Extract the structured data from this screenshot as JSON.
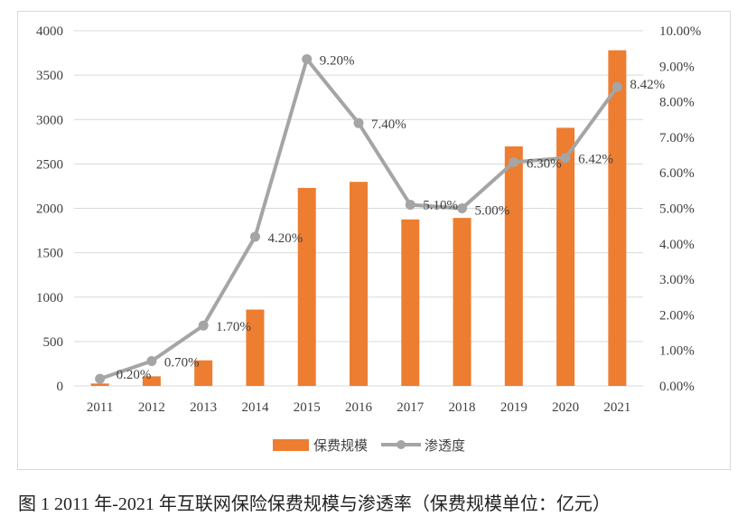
{
  "chart_data": {
    "type": "bar+line",
    "categories": [
      "2011",
      "2012",
      "2013",
      "2014",
      "2015",
      "2016",
      "2017",
      "2018",
      "2019",
      "2020",
      "2021"
    ],
    "series": [
      {
        "name": "保费规模",
        "type": "bar",
        "axis": "left",
        "color": "#ED7D31",
        "values": [
          27,
          108,
          288,
          860,
          2230,
          2298,
          1875,
          1892,
          2697,
          2907,
          3780
        ]
      },
      {
        "name": "渗透度",
        "type": "line",
        "axis": "right",
        "color": "#A5A5A5",
        "values": [
          0.2,
          0.7,
          1.7,
          4.2,
          9.2,
          7.4,
          5.1,
          5.0,
          6.3,
          6.42,
          8.42
        ],
        "data_labels": [
          "0.20%",
          "0.70%",
          "1.70%",
          "4.20%",
          "9.20%",
          "7.40%",
          "5.10%",
          "5.00%",
          "6.30%",
          "6.42%",
          "8.42%"
        ]
      }
    ],
    "left_axis": {
      "ylim": [
        0,
        4000
      ],
      "ticks": [
        "0",
        "500",
        "1000",
        "1500",
        "2000",
        "2500",
        "3000",
        "3500",
        "4000"
      ]
    },
    "right_axis": {
      "ylim": [
        0,
        10
      ],
      "ticks": [
        "0.00%",
        "1.00%",
        "2.00%",
        "3.00%",
        "4.00%",
        "5.00%",
        "6.00%",
        "7.00%",
        "8.00%",
        "9.00%",
        "10.00%"
      ]
    },
    "grid": true,
    "legend": "bottom",
    "caption": "图 1 2011 年-2021 年互联网保险保费规模与渗透率（保费规模单位：亿元）"
  }
}
